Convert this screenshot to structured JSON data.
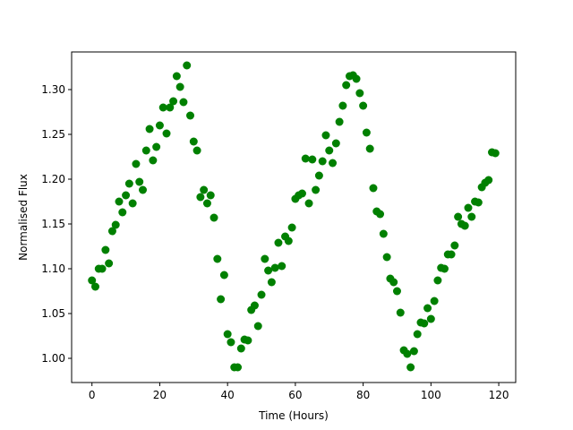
{
  "chart_data": {
    "type": "scatter",
    "title": "",
    "xlabel": "Time (Hours)",
    "ylabel": "Normalised Flux",
    "xlim": [
      -6,
      125
    ],
    "ylim": [
      0.973,
      1.342
    ],
    "xticks": [
      0,
      20,
      40,
      60,
      80,
      100,
      120
    ],
    "yticks": [
      1.0,
      1.05,
      1.1,
      1.15,
      1.2,
      1.25,
      1.3
    ],
    "grid": false,
    "legend": "none",
    "marker_color": "#008000",
    "series": [
      {
        "points": [
          [
            0.0,
            1.087
          ],
          [
            1.0,
            1.08
          ],
          [
            2.0,
            1.1
          ],
          [
            3.0,
            1.1
          ],
          [
            4.0,
            1.121
          ],
          [
            5.0,
            1.106
          ],
          [
            6.0,
            1.142
          ],
          [
            7.0,
            1.149
          ],
          [
            8.0,
            1.175
          ],
          [
            9.0,
            1.163
          ],
          [
            10.0,
            1.182
          ],
          [
            11.0,
            1.195
          ],
          [
            12.0,
            1.173
          ],
          [
            13.0,
            1.217
          ],
          [
            14.0,
            1.197
          ],
          [
            15.0,
            1.188
          ],
          [
            16.0,
            1.232
          ],
          [
            17.0,
            1.256
          ],
          [
            18.0,
            1.221
          ],
          [
            19.0,
            1.236
          ],
          [
            20.0,
            1.26
          ],
          [
            21.0,
            1.28
          ],
          [
            22.0,
            1.251
          ],
          [
            23.0,
            1.28
          ],
          [
            24.0,
            1.287
          ],
          [
            25.0,
            1.315
          ],
          [
            26.0,
            1.303
          ],
          [
            27.0,
            1.286
          ],
          [
            28.0,
            1.327
          ],
          [
            29.0,
            1.271
          ],
          [
            30.0,
            1.242
          ],
          [
            31.0,
            1.232
          ],
          [
            32.0,
            1.18
          ],
          [
            33.0,
            1.188
          ],
          [
            34.0,
            1.173
          ],
          [
            35.0,
            1.182
          ],
          [
            36.0,
            1.157
          ],
          [
            37.0,
            1.111
          ],
          [
            38.0,
            1.066
          ],
          [
            39.0,
            1.093
          ],
          [
            40.0,
            1.027
          ],
          [
            41.0,
            1.018
          ],
          [
            42.0,
            0.99
          ],
          [
            43.0,
            0.99
          ],
          [
            44.0,
            1.011
          ],
          [
            45.0,
            1.021
          ],
          [
            46.0,
            1.02
          ],
          [
            47.0,
            1.054
          ],
          [
            48.0,
            1.059
          ],
          [
            49.0,
            1.036
          ],
          [
            50.0,
            1.071
          ],
          [
            51.0,
            1.111
          ],
          [
            52.0,
            1.098
          ],
          [
            53.0,
            1.085
          ],
          [
            54.0,
            1.101
          ],
          [
            55.0,
            1.129
          ],
          [
            56.0,
            1.103
          ],
          [
            57.0,
            1.136
          ],
          [
            58.0,
            1.131
          ],
          [
            59.0,
            1.146
          ],
          [
            60.0,
            1.178
          ],
          [
            61.0,
            1.182
          ],
          [
            62.0,
            1.184
          ],
          [
            63.0,
            1.223
          ],
          [
            64.0,
            1.173
          ],
          [
            65.0,
            1.222
          ],
          [
            66.0,
            1.188
          ],
          [
            67.0,
            1.204
          ],
          [
            68.0,
            1.22
          ],
          [
            69.0,
            1.249
          ],
          [
            70.0,
            1.232
          ],
          [
            71.0,
            1.218
          ],
          [
            72.0,
            1.24
          ],
          [
            73.0,
            1.264
          ],
          [
            74.0,
            1.282
          ],
          [
            75.0,
            1.305
          ],
          [
            76.0,
            1.315
          ],
          [
            77.0,
            1.316
          ],
          [
            78.0,
            1.312
          ],
          [
            79.0,
            1.296
          ],
          [
            80.0,
            1.282
          ],
          [
            81.0,
            1.252
          ],
          [
            82.0,
            1.234
          ],
          [
            83.0,
            1.19
          ],
          [
            84.0,
            1.164
          ],
          [
            85.0,
            1.161
          ],
          [
            86.0,
            1.139
          ],
          [
            87.0,
            1.113
          ],
          [
            88.0,
            1.089
          ],
          [
            89.0,
            1.085
          ],
          [
            90.0,
            1.075
          ],
          [
            91.0,
            1.051
          ],
          [
            92.0,
            1.009
          ],
          [
            93.0,
            1.005
          ],
          [
            94.0,
            0.99
          ],
          [
            95.0,
            1.008
          ],
          [
            96.0,
            1.027
          ],
          [
            97.0,
            1.04
          ],
          [
            98.0,
            1.039
          ],
          [
            99.0,
            1.056
          ],
          [
            100.0,
            1.044
          ],
          [
            101.0,
            1.064
          ],
          [
            102.0,
            1.087
          ],
          [
            103.0,
            1.101
          ],
          [
            104.0,
            1.1
          ],
          [
            105.0,
            1.116
          ],
          [
            106.0,
            1.116
          ],
          [
            107.0,
            1.126
          ],
          [
            108.0,
            1.158
          ],
          [
            109.0,
            1.15
          ],
          [
            110.0,
            1.148
          ],
          [
            111.0,
            1.168
          ],
          [
            112.0,
            1.158
          ],
          [
            113.0,
            1.175
          ],
          [
            114.0,
            1.174
          ],
          [
            115.0,
            1.191
          ],
          [
            116.0,
            1.196
          ],
          [
            117.0,
            1.199
          ],
          [
            118.0,
            1.23
          ],
          [
            119.0,
            1.229
          ]
        ]
      }
    ]
  }
}
